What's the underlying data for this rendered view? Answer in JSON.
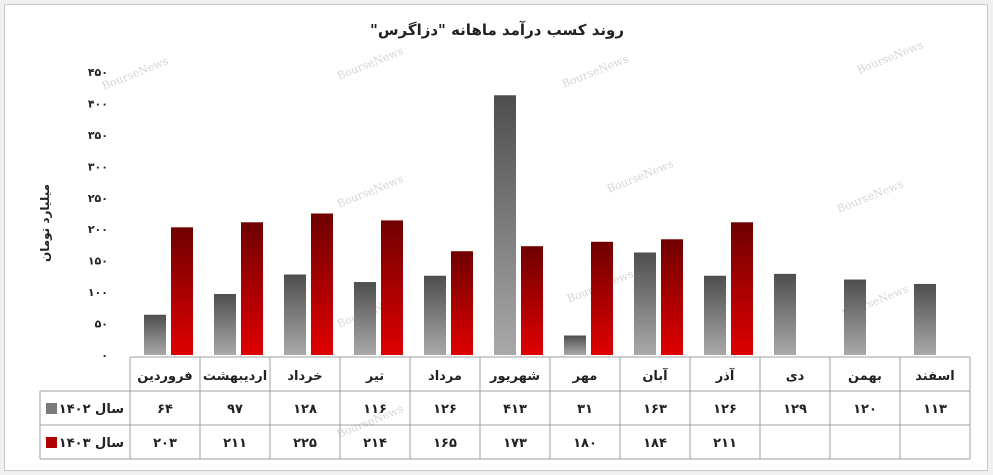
{
  "chart_data": {
    "type": "bar",
    "title": "روند کسب درآمد ماهانه \"دزاگرس\"",
    "ylabel": "میلیارد تومان",
    "xlabel": "",
    "ylim": [
      0,
      450
    ],
    "yticks": [
      "۰",
      "۵۰",
      "۱۰۰",
      "۱۵۰",
      "۲۰۰",
      "۲۵۰",
      "۳۰۰",
      "۳۵۰",
      "۴۰۰",
      "۴۵۰"
    ],
    "categories": [
      "فروردین",
      "اردیبهشت",
      "خرداد",
      "تیر",
      "مرداد",
      "شهریور",
      "مهر",
      "آبان",
      "آذر",
      "دی",
      "بهمن",
      "اسفند"
    ],
    "series": [
      {
        "name": "سال ۱۴۰۲",
        "color": "#7a7a7a",
        "values": [
          64,
          97,
          128,
          116,
          126,
          413,
          31,
          163,
          126,
          129,
          120,
          113
        ],
        "labels": [
          "۶۴",
          "۹۷",
          "۱۲۸",
          "۱۱۶",
          "۱۲۶",
          "۴۱۳",
          "۳۱",
          "۱۶۳",
          "۱۲۶",
          "۱۲۹",
          "۱۲۰",
          "۱۱۳"
        ]
      },
      {
        "name": "سال ۱۴۰۳",
        "color": "#b00000",
        "values": [
          203,
          211,
          225,
          214,
          165,
          173,
          180,
          184,
          211,
          null,
          null,
          null
        ],
        "labels": [
          "۲۰۳",
          "۲۱۱",
          "۲۲۵",
          "۲۱۴",
          "۱۶۵",
          "۱۷۳",
          "۱۸۰",
          "۱۸۴",
          "۲۱۱",
          "",
          "",
          ""
        ]
      }
    ],
    "grid": false,
    "legend": "data-table"
  },
  "watermark": "BourseNews"
}
